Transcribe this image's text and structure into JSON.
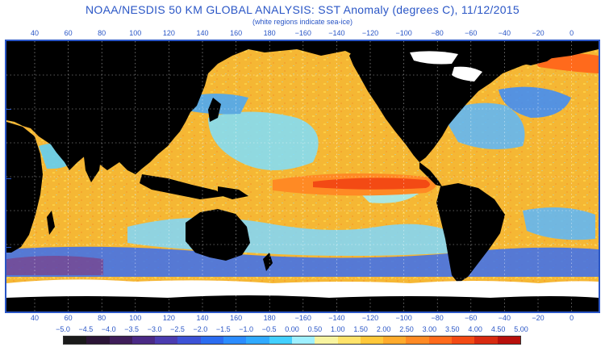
{
  "title": "NOAA/NESDIS 50 KM GLOBAL ANALYSIS: SST Anomaly (degrees C), 11/12/2015",
  "subtitle": "(white regions indicate sea-ice)",
  "longitude_labels": [
    "40",
    "60",
    "80",
    "100",
    "120",
    "140",
    "160",
    "180",
    "−160",
    "−140",
    "−120",
    "−100",
    "−80",
    "−60",
    "−40",
    "−20",
    "0"
  ],
  "colorbar": {
    "labels": [
      "−5.0",
      "−4.5",
      "−4.0",
      "−3.5",
      "−3.0",
      "−2.5",
      "−2.0",
      "−1.5",
      "−1.0",
      "−0.5",
      "0.00",
      "0.50",
      "1.00",
      "1.50",
      "2.00",
      "2.50",
      "3.00",
      "3.50",
      "4.00",
      "4.50",
      "5.00"
    ],
    "colors": [
      "#1a1a1a",
      "#2b1537",
      "#3f1e5a",
      "#4b2a86",
      "#4b3cb0",
      "#3d52d6",
      "#2b6cf0",
      "#2b8cff",
      "#30aaff",
      "#43d0ff",
      "#9ff0ff",
      "#f8f4a0",
      "#ffe36a",
      "#ffc83a",
      "#ffab2c",
      "#ff8a24",
      "#ff6a1c",
      "#f34a14",
      "#d82a10",
      "#b8100c"
    ]
  },
  "map": {
    "ocean_color": "#f5b734",
    "land_color": "#000000",
    "ice_color": "#ffffff"
  }
}
